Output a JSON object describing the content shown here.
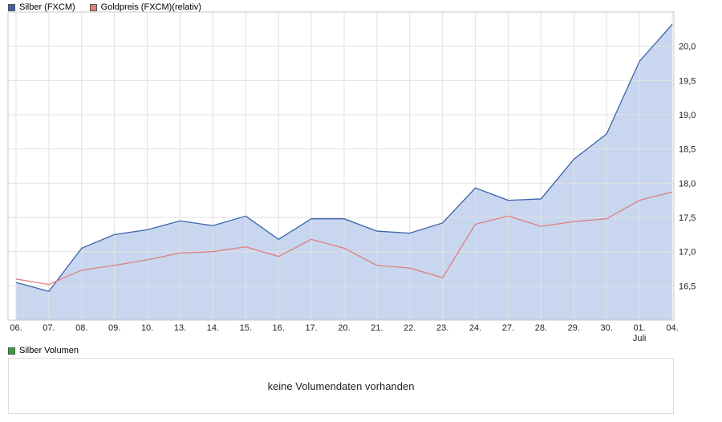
{
  "legend_top": [
    {
      "label": "Silber (FXCM)",
      "color": "#3a63ad"
    },
    {
      "label": "Goldpreis (FXCM)(relativ)",
      "color": "#e07e7e"
    }
  ],
  "volume": {
    "legend_label": "Silber Volumen",
    "legend_color": "#2da32d",
    "message": "keine Volumendaten vorhanden"
  },
  "colors": {
    "grid": "#e2e2e2",
    "border": "#c8c8c8",
    "background": "#ffffff"
  },
  "chart_data": {
    "type": "area",
    "title": "",
    "xlabel": "",
    "ylabel": "",
    "grid": true,
    "legend_position": "top-left",
    "categories": [
      "06.",
      "07.",
      "08.",
      "09.",
      "10.",
      "13.",
      "14.",
      "15.",
      "16.",
      "17.",
      "20.",
      "21.",
      "22.",
      "23.",
      "24.",
      "27.",
      "28.",
      "29.",
      "30.",
      "01.",
      "04."
    ],
    "x_sub_label": {
      "index": 19,
      "label": "Juli"
    },
    "series": [
      {
        "name": "Silber (FXCM)",
        "type": "area",
        "color": "#3a63ad",
        "fill": "#c8d6ef",
        "values": [
          16.55,
          16.42,
          17.05,
          17.25,
          17.32,
          17.45,
          17.38,
          17.52,
          17.18,
          17.48,
          17.48,
          17.3,
          17.27,
          17.42,
          17.93,
          17.75,
          17.77,
          18.35,
          18.72,
          19.78,
          20.32
        ]
      },
      {
        "name": "Goldpreis (FXCM)(relativ)",
        "type": "line",
        "color": "#e07e7e",
        "values": [
          16.6,
          16.52,
          16.73,
          16.8,
          16.88,
          16.98,
          17.0,
          17.07,
          16.93,
          17.18,
          17.05,
          16.8,
          16.76,
          16.62,
          17.4,
          17.52,
          17.37,
          17.44,
          17.48,
          17.75,
          17.87
        ]
      }
    ],
    "ylim": [
      16.0,
      20.5
    ],
    "yticks": [
      16.5,
      17.0,
      17.5,
      18.0,
      18.5,
      19.0,
      19.5,
      20.0
    ],
    "ytick_labels": [
      "16,5",
      "17,0",
      "17,5",
      "18,0",
      "18,5",
      "19,0",
      "19,5",
      "20,0"
    ]
  }
}
